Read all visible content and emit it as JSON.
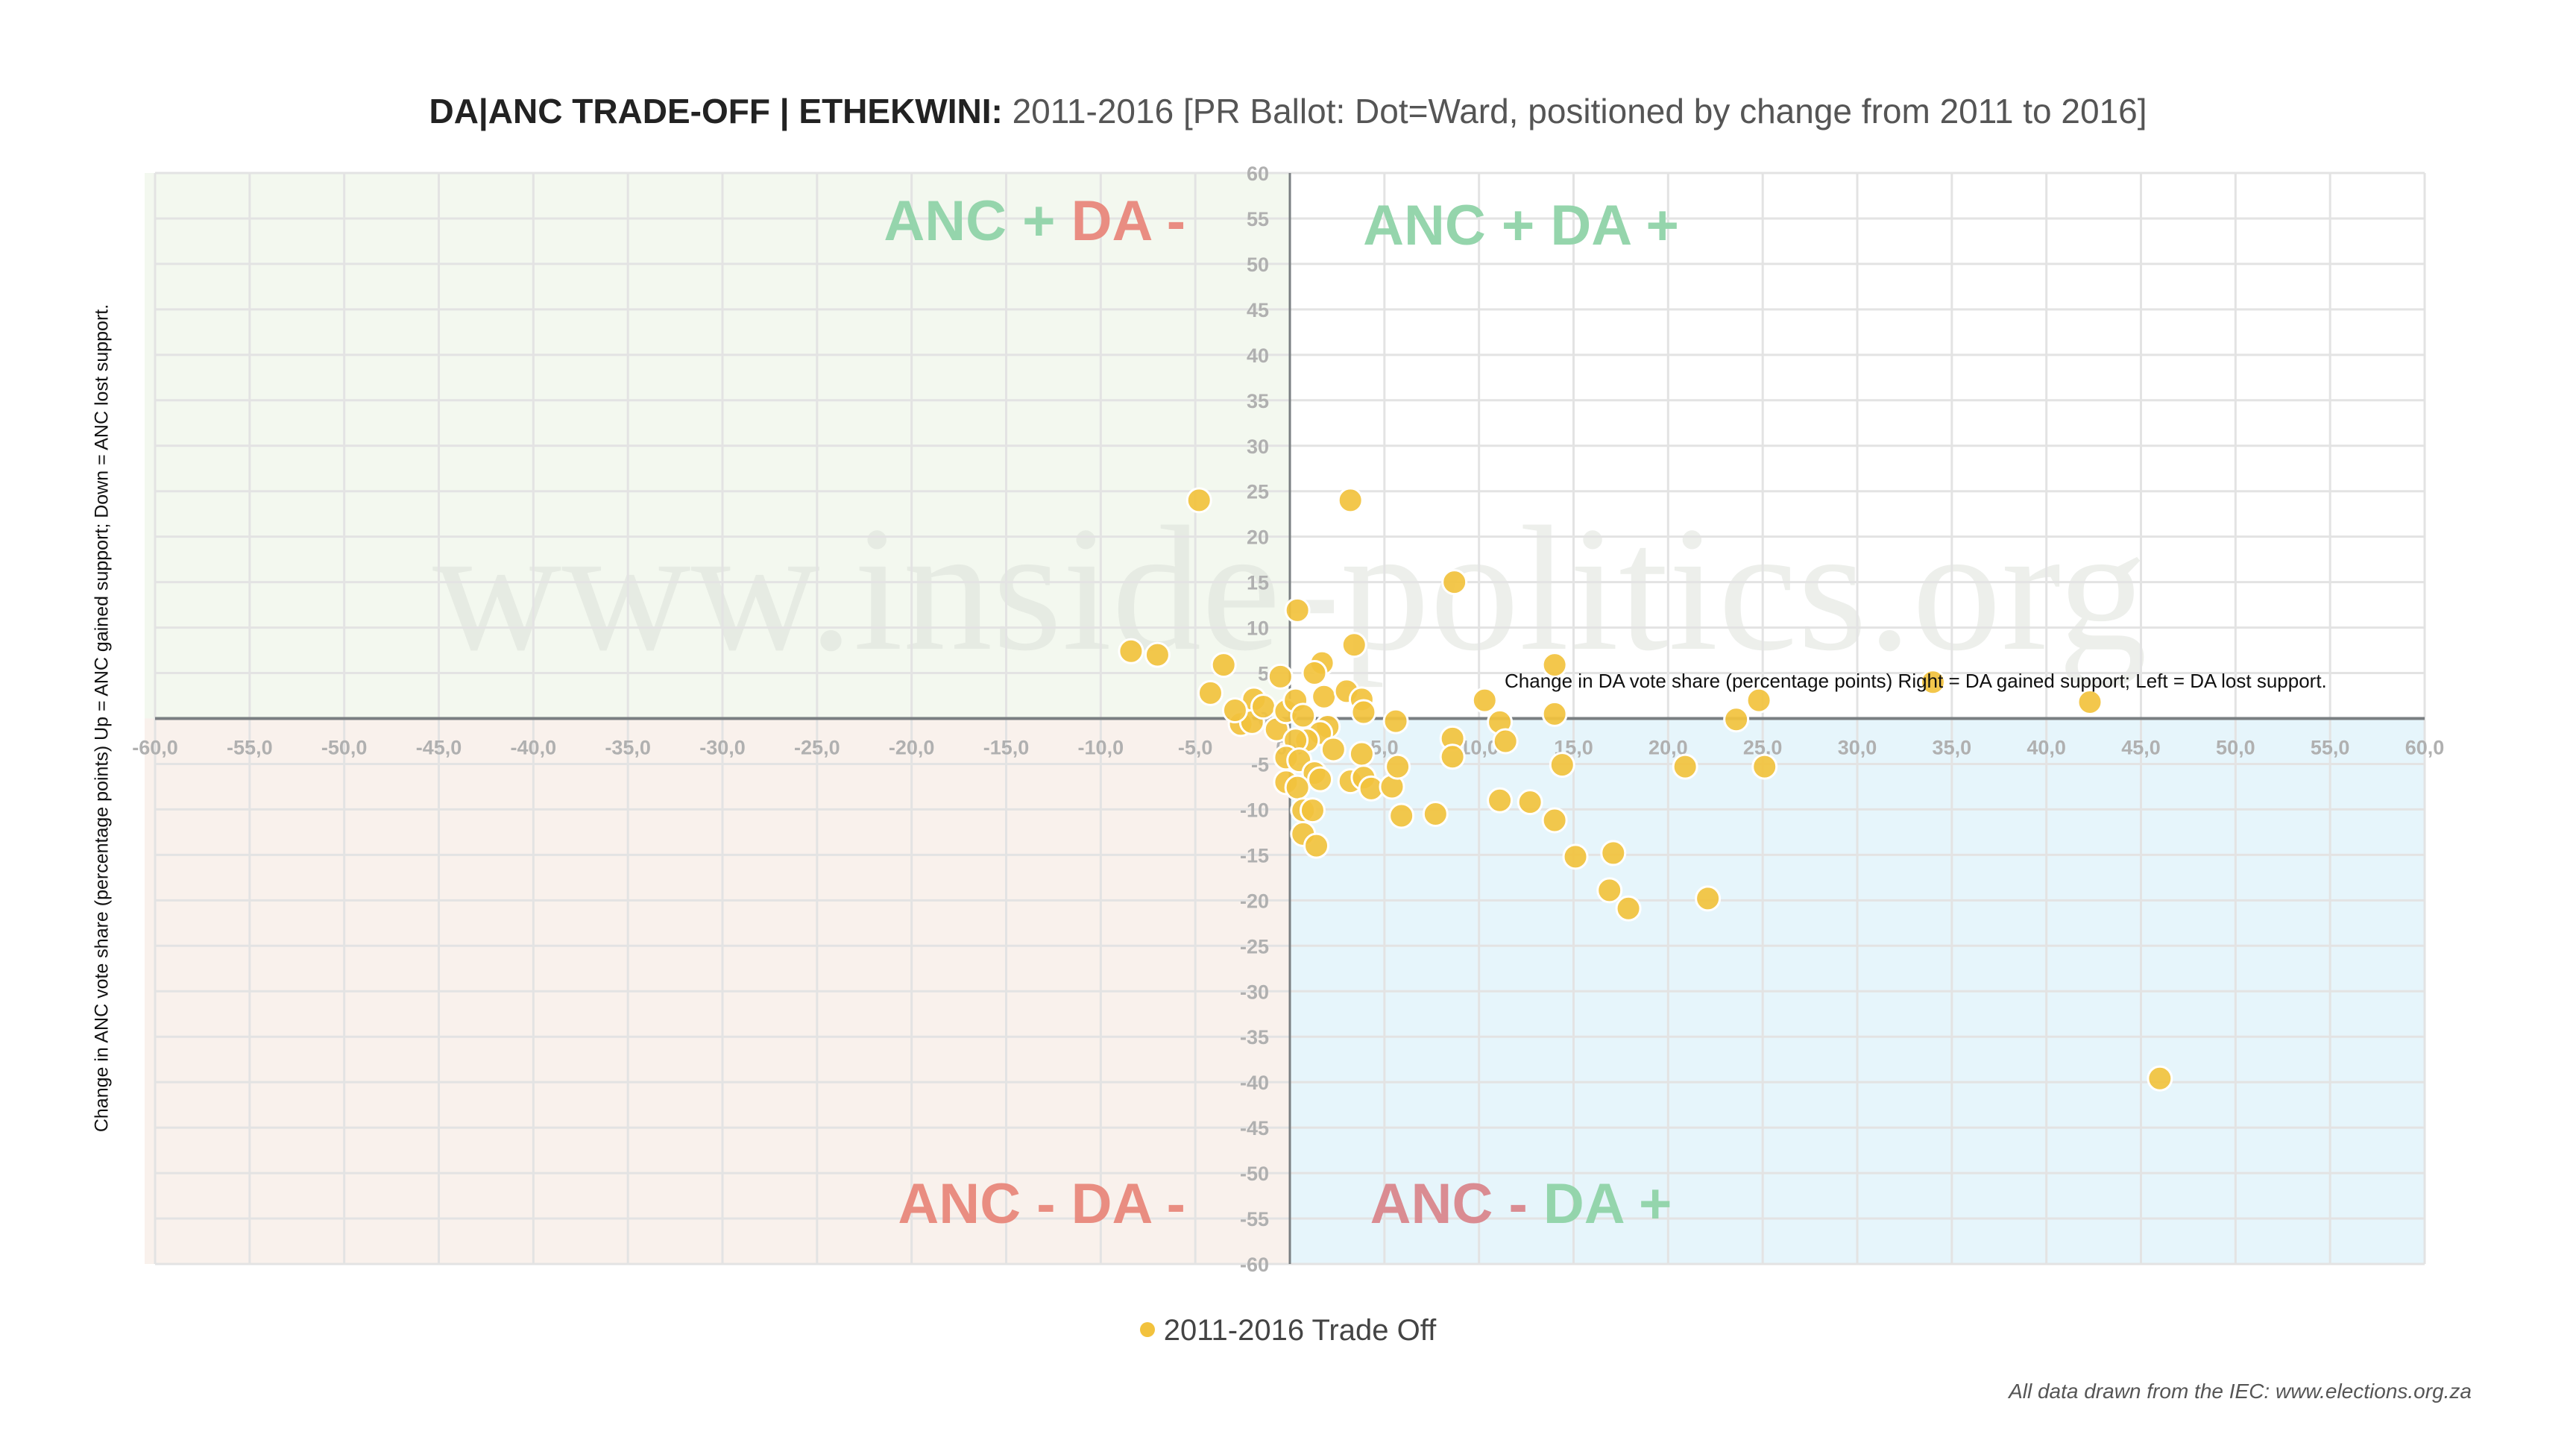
{
  "title": {
    "bold": "DA|ANC TRADE-OFF | ETHEKWINI:",
    "rest": " 2011-2016 [PR Ballot: Dot=Ward, positioned by change from 2011 to 2016]"
  },
  "watermark": "www.inside-politics.org",
  "legend": {
    "label": "2011-2016 Trade Off",
    "color": "#F2C23D"
  },
  "source": "All data drawn from the IEC: www.elections.org.za",
  "colors": {
    "point": "#F2C23D",
    "point_stroke": "#ffffff",
    "q_tl": "#F3F8EF",
    "q_tr": "#FFFFFF",
    "q_bl": "#F9F1EC",
    "q_br": "#E6F5FB",
    "green": "#8FD3A8",
    "red": "#E8877B",
    "red_muted": "#D9868C",
    "axis": "#7a7f82",
    "grid": "#e3e3e3"
  },
  "chart_data": {
    "type": "scatter",
    "title": "DA|ANC TRADE-OFF | ETHEKWINI: 2011-2016 [PR Ballot: Dot=Ward, positioned by change from 2011 to 2016]",
    "xlabel": "Change in DA vote share (percentage points) Right = DA gained support; Left = DA lost support.",
    "ylabel": "Change in ANC vote share (percentage points) Up = ANC gained support; Down = ANC lost support.",
    "xlim": [
      -60,
      60
    ],
    "ylim": [
      -60,
      60
    ],
    "x_ticks": [
      -60,
      -55,
      -50,
      -45,
      -40,
      -35,
      -30,
      -25,
      -20,
      -15,
      -10,
      -5,
      0,
      5,
      10,
      15,
      20,
      25,
      30,
      35,
      40,
      45,
      50,
      55,
      60
    ],
    "x_tick_labels": [
      "-60,0",
      "-55,0",
      "-50,0",
      "-45,0",
      "-40,0",
      "-35,0",
      "-30,0",
      "-25,0",
      "-20,0",
      "-15,0",
      "-10,0",
      "-5,0",
      "0,0",
      "5,0",
      "10,0",
      "15,0",
      "20,0",
      "25,0",
      "30,0",
      "35,0",
      "40,0",
      "45,0",
      "50,0",
      "55,0",
      "60,0"
    ],
    "y_ticks": [
      60,
      55,
      50,
      45,
      40,
      35,
      30,
      25,
      20,
      15,
      10,
      5,
      0,
      -5,
      -10,
      -15,
      -20,
      -25,
      -30,
      -35,
      -40,
      -45,
      -50,
      -55,
      -60
    ],
    "grid": true,
    "legend_position": "bottom-center",
    "quadrant_labels": [
      {
        "id": "tl",
        "parts": [
          {
            "text": "ANC + ",
            "tone": "green"
          },
          {
            "text": "DA -",
            "tone": "red"
          }
        ]
      },
      {
        "id": "tr",
        "parts": [
          {
            "text": "ANC + DA +",
            "tone": "green"
          }
        ]
      },
      {
        "id": "bl",
        "parts": [
          {
            "text": "ANC - DA -",
            "tone": "red"
          }
        ]
      },
      {
        "id": "br",
        "parts": [
          {
            "text": "ANC - ",
            "tone": "red_muted"
          },
          {
            "text": "DA +",
            "tone": "green"
          }
        ]
      }
    ],
    "series": [
      {
        "name": "2011-2016 Trade Off",
        "points": [
          [
            -4.8,
            24.0
          ],
          [
            3.2,
            24.0
          ],
          [
            8.7,
            15.0
          ],
          [
            0.4,
            11.9
          ],
          [
            -8.4,
            7.4
          ],
          [
            -7.0,
            7.0
          ],
          [
            -3.5,
            5.9
          ],
          [
            3.4,
            8.1
          ],
          [
            1.7,
            6.1
          ],
          [
            1.3,
            5.0
          ],
          [
            -0.5,
            4.6
          ],
          [
            -4.2,
            2.8
          ],
          [
            -1.9,
            2.1
          ],
          [
            1.8,
            2.4
          ],
          [
            3.0,
            3.0
          ],
          [
            3.8,
            2.1
          ],
          [
            3.9,
            0.7
          ],
          [
            5.6,
            -0.3
          ],
          [
            10.3,
            2.0
          ],
          [
            11.1,
            -0.4
          ],
          [
            -2.6,
            -0.6
          ],
          [
            -2.0,
            -0.4
          ],
          [
            -2.9,
            0.9
          ],
          [
            -1.4,
            1.3
          ],
          [
            -0.7,
            -1.2
          ],
          [
            -0.2,
            0.8
          ],
          [
            0.3,
            2.0
          ],
          [
            0.7,
            0.3
          ],
          [
            2.0,
            -0.9
          ],
          [
            1.6,
            -1.6
          ],
          [
            0.9,
            -2.4
          ],
          [
            0.3,
            -2.4
          ],
          [
            2.3,
            -3.4
          ],
          [
            3.8,
            -3.9
          ],
          [
            -0.2,
            -4.3
          ],
          [
            0.5,
            -4.6
          ],
          [
            1.3,
            -6.0
          ],
          [
            1.6,
            -6.7
          ],
          [
            -0.2,
            -7.0
          ],
          [
            0.4,
            -7.6
          ],
          [
            3.2,
            -6.9
          ],
          [
            3.9,
            -6.5
          ],
          [
            4.3,
            -7.7
          ],
          [
            5.4,
            -7.5
          ],
          [
            5.7,
            -5.3
          ],
          [
            5.9,
            -10.7
          ],
          [
            7.7,
            -10.5
          ],
          [
            0.7,
            -10.1
          ],
          [
            1.2,
            -10.1
          ],
          [
            0.7,
            -12.7
          ],
          [
            1.4,
            -14.0
          ],
          [
            8.6,
            -2.2
          ],
          [
            8.6,
            -4.2
          ],
          [
            11.4,
            -2.5
          ],
          [
            14.0,
            0.5
          ],
          [
            14.0,
            5.9
          ],
          [
            14.4,
            -5.1
          ],
          [
            11.1,
            -9.0
          ],
          [
            12.7,
            -9.2
          ],
          [
            14.0,
            -11.2
          ],
          [
            15.1,
            -15.2
          ],
          [
            17.1,
            -14.8
          ],
          [
            16.9,
            -18.9
          ],
          [
            17.9,
            -20.9
          ],
          [
            22.1,
            -19.8
          ],
          [
            20.9,
            -5.3
          ],
          [
            23.6,
            -0.1
          ],
          [
            24.8,
            2.0
          ],
          [
            25.1,
            -5.3
          ],
          [
            34.0,
            4.0
          ],
          [
            42.3,
            1.8
          ],
          [
            46.0,
            -39.6
          ]
        ]
      }
    ]
  }
}
